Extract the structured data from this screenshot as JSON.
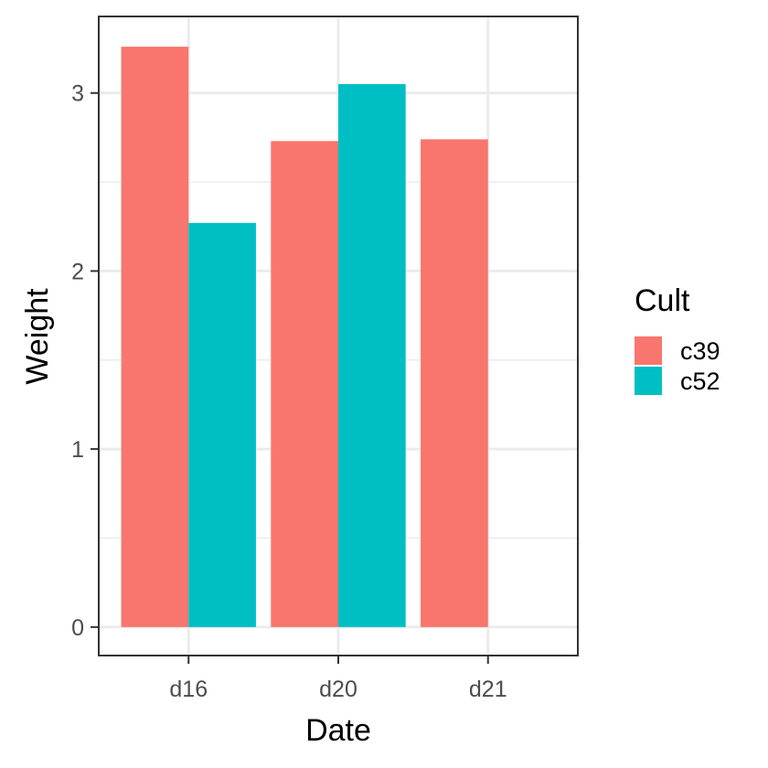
{
  "chart_data": {
    "type": "bar",
    "title": "",
    "xlabel": "Date",
    "ylabel": "Weight",
    "categories": [
      "d16",
      "d20",
      "d21"
    ],
    "series": [
      {
        "name": "c39",
        "color": "#F8766D",
        "values": [
          3.26,
          2.73,
          2.74
        ]
      },
      {
        "name": "c52",
        "color": "#00BFC4",
        "values": [
          2.27,
          3.05,
          null
        ]
      }
    ],
    "ylim": [
      -0.16,
      3.43
    ],
    "yticks": [
      0,
      1,
      2,
      3
    ],
    "ytick_labels": [
      "0",
      "1",
      "2",
      "3"
    ],
    "grid": true,
    "legend": {
      "title": "Cult",
      "position": "right"
    }
  }
}
